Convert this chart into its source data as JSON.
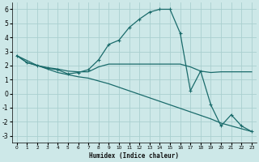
{
  "xlabel": "Humidex (Indice chaleur)",
  "bg_color": "#cde8e8",
  "grid_color": "#aacfcf",
  "line_color": "#1a6b6b",
  "xlim": [
    -0.5,
    23.5
  ],
  "ylim": [
    -3.5,
    6.5
  ],
  "xticks": [
    0,
    1,
    2,
    3,
    4,
    5,
    6,
    7,
    8,
    9,
    10,
    11,
    12,
    13,
    14,
    15,
    16,
    17,
    18,
    19,
    20,
    21,
    22,
    23
  ],
  "yticks": [
    -3,
    -2,
    -1,
    0,
    1,
    2,
    3,
    4,
    5,
    6
  ],
  "line1_x": [
    0,
    1,
    2,
    3,
    4,
    5,
    6,
    7,
    8,
    9,
    10,
    11,
    12,
    13,
    14,
    15,
    16,
    17,
    18,
    19,
    20,
    21,
    22,
    23
  ],
  "line1_y": [
    2.7,
    2.2,
    2.0,
    1.8,
    1.7,
    1.4,
    1.5,
    1.7,
    2.4,
    3.5,
    3.8,
    4.7,
    5.3,
    5.8,
    6.0,
    6.0,
    4.3,
    0.2,
    1.6,
    -0.8,
    -2.3,
    -1.5,
    -2.3,
    -2.7
  ],
  "line2_x": [
    0,
    1,
    2,
    3,
    4,
    5,
    6,
    7,
    8,
    9,
    10,
    11,
    12,
    13,
    14,
    15,
    16,
    17,
    18,
    19,
    20,
    21,
    22,
    23
  ],
  "line2_y": [
    2.7,
    2.2,
    2.0,
    1.85,
    1.75,
    1.6,
    1.55,
    1.55,
    1.9,
    2.1,
    2.1,
    2.1,
    2.1,
    2.1,
    2.1,
    2.1,
    2.1,
    1.9,
    1.6,
    1.5,
    1.55,
    1.55,
    1.55,
    1.55
  ],
  "line3_x": [
    0,
    1,
    2,
    3,
    4,
    5,
    6,
    7,
    8,
    9,
    10,
    11,
    12,
    13,
    14,
    15,
    16,
    17,
    18,
    19,
    20,
    21,
    22,
    23
  ],
  "line3_y": [
    2.7,
    2.35,
    2.0,
    1.75,
    1.5,
    1.35,
    1.2,
    1.1,
    0.9,
    0.7,
    0.45,
    0.2,
    -0.05,
    -0.3,
    -0.55,
    -0.8,
    -1.05,
    -1.3,
    -1.55,
    -1.8,
    -2.1,
    -2.3,
    -2.5,
    -2.7
  ]
}
